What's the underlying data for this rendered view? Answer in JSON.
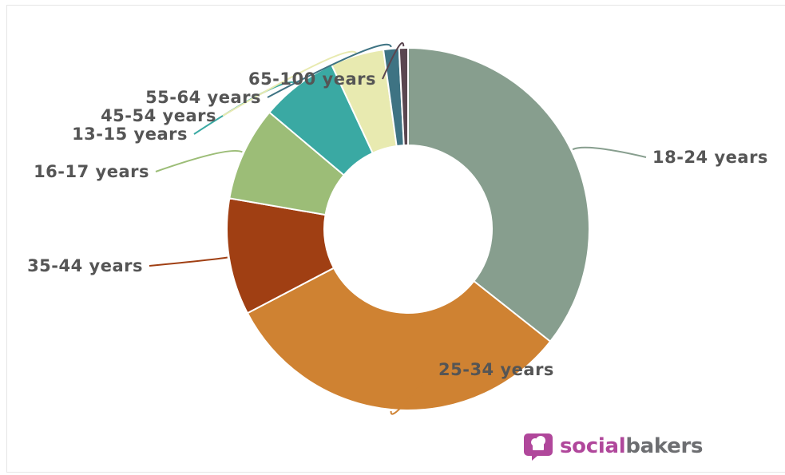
{
  "chart_data": {
    "type": "pie",
    "donut": true,
    "slices": [
      {
        "label": "18-24 years",
        "value": 36.0,
        "color": "#879e8e"
      },
      {
        "label": "25-34 years",
        "value": 32.0,
        "color": "#cf8232"
      },
      {
        "label": "35-44 years",
        "value": 10.5,
        "color": "#a03f13"
      },
      {
        "label": "16-17 years",
        "value": 8.5,
        "color": "#9cbd77"
      },
      {
        "label": "13-15 years",
        "value": 7.0,
        "color": "#3aa9a3"
      },
      {
        "label": "45-54 years",
        "value": 4.8,
        "color": "#e8eab0"
      },
      {
        "label": "55-64 years",
        "value": 1.4,
        "color": "#3e7383"
      },
      {
        "label": "65-100 years",
        "value": 0.8,
        "color": "#5a4650"
      }
    ]
  },
  "brand": {
    "part1": "social",
    "part2": "bakers"
  }
}
